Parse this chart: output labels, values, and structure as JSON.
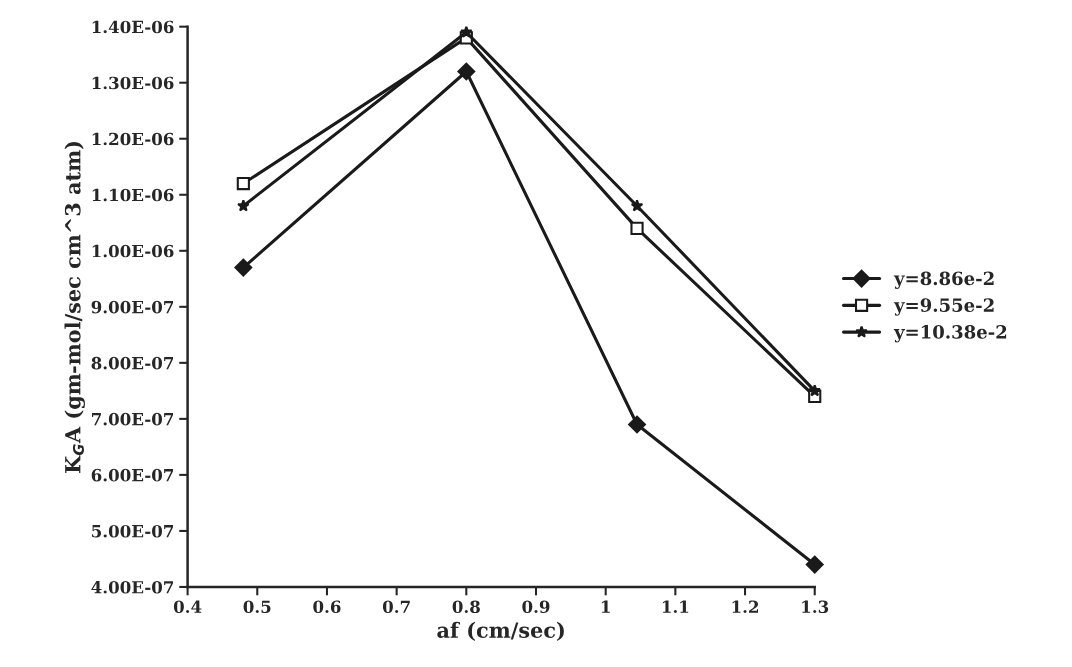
{
  "chart_data": {
    "type": "line",
    "xlabel": "af (cm/sec)",
    "ylabel": "K$_{G}$A (gm-mol/sec cm^3 atm)",
    "x": [
      0.48,
      0.8,
      1.045,
      1.3
    ],
    "series": [
      {
        "name": "y=8.86e-2",
        "color": "#1a1a1a",
        "marker": "diamond",
        "values": [
          9.7e-07,
          1.32e-06,
          6.9e-07,
          4.4e-07
        ]
      },
      {
        "name": "y=9.55e-2",
        "color": "#1a1a1a",
        "marker": "square",
        "values": [
          1.12e-06,
          1.38e-06,
          1.04e-06,
          7.4e-07
        ]
      },
      {
        "name": "y=10.38e-2",
        "color": "#1a1a1a",
        "marker": "star",
        "values": [
          1.08e-06,
          1.39e-06,
          1.08e-06,
          7.5e-07
        ]
      }
    ],
    "xlim": [
      0.4,
      1.3
    ],
    "xticks": [
      0.4,
      0.5,
      0.6,
      0.7,
      0.8,
      0.9,
      1,
      1.1,
      1.2,
      1.3
    ],
    "ylim": [
      4e-07,
      1.4e-06
    ],
    "yticks": [
      {
        "value": 4e-07,
        "label": "4.00E-07"
      },
      {
        "value": 5e-07,
        "label": "5.00E-07"
      },
      {
        "value": 6e-07,
        "label": "6.00E-07"
      },
      {
        "value": 7e-07,
        "label": "7.00E-07"
      },
      {
        "value": 8e-07,
        "label": "8.00E-07"
      },
      {
        "value": 9e-07,
        "label": "9.00E-07"
      },
      {
        "value": 1e-06,
        "label": "1.00E-06"
      },
      {
        "value": 1.1e-06,
        "label": "1.10E-06"
      },
      {
        "value": 1.2e-06,
        "label": "1.20E-06"
      },
      {
        "value": 1.3e-06,
        "label": "1.30E-06"
      },
      {
        "value": 1.4e-06,
        "label": "1.40E-06"
      }
    ],
    "grid": false,
    "legend": "right",
    "line_style": "solid"
  }
}
